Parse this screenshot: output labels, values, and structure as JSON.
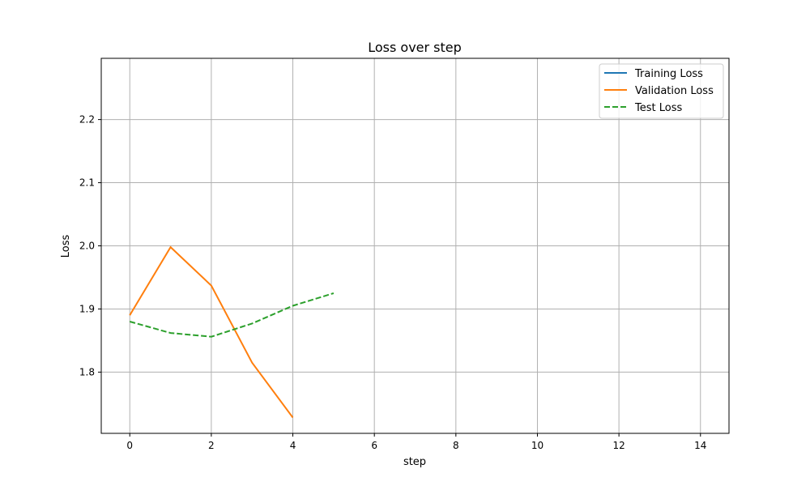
{
  "chart_data": {
    "type": "line",
    "title": "Loss over step",
    "xlabel": "step",
    "ylabel": "Loss",
    "xlim": [
      -0.7,
      14.7
    ],
    "ylim": [
      1.703,
      2.297
    ],
    "xticks": [
      0,
      2,
      4,
      6,
      8,
      10,
      12,
      14
    ],
    "xtick_labels": [
      "0",
      "2",
      "4",
      "6",
      "8",
      "10",
      "12",
      "14"
    ],
    "yticks": [
      1.8,
      1.9,
      2.0,
      2.1,
      2.2
    ],
    "ytick_labels": [
      "1.8",
      "1.9",
      "2.0",
      "2.1",
      "2.2"
    ],
    "grid": true,
    "legend_position": "top-right",
    "series": [
      {
        "name": "Training Loss",
        "color": "#1f77b4",
        "style": "solid",
        "x": [],
        "y": []
      },
      {
        "name": "Validation Loss",
        "color": "#ff7f0e",
        "style": "solid",
        "x": [
          0,
          1,
          2,
          3,
          4
        ],
        "y": [
          1.89,
          1.998,
          1.937,
          1.815,
          1.728
        ]
      },
      {
        "name": "Test Loss",
        "color": "#2ca02c",
        "style": "dashed",
        "x": [
          0,
          1,
          2,
          3,
          4,
          5
        ],
        "y": [
          1.88,
          1.862,
          1.856,
          1.877,
          1.905,
          1.925
        ]
      }
    ]
  }
}
